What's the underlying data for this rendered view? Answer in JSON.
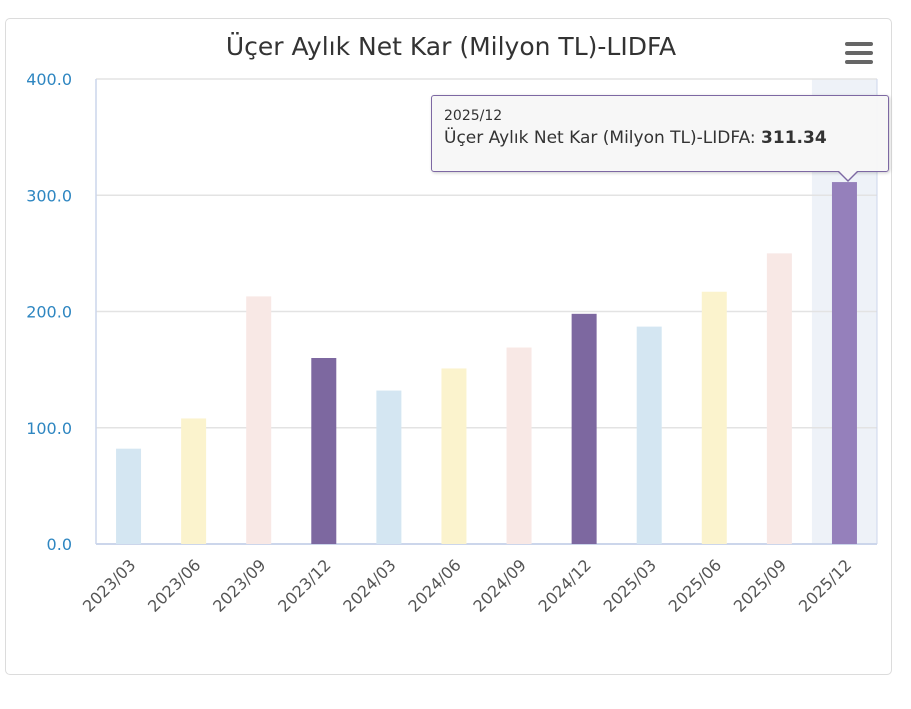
{
  "chart_data": {
    "type": "bar",
    "title": "Üçer Aylık Net Kar (Milyon TL)-LIDFA",
    "categories": [
      "2023/03",
      "2023/06",
      "2023/09",
      "2023/12",
      "2024/03",
      "2024/06",
      "2024/09",
      "2024/12",
      "2025/03",
      "2025/06",
      "2025/09",
      "2025/12"
    ],
    "series": [
      {
        "name": "Üçer Aylık Net Kar (Milyon TL)-LIDFA",
        "values": [
          82,
          108,
          213,
          160,
          132,
          151,
          169,
          198,
          187,
          217,
          250,
          311.34
        ]
      }
    ],
    "colors": [
      "#d4e6f2",
      "#fbf3cd",
      "#f8e8e5",
      "#7d68a0",
      "#d4e6f2",
      "#fbf3cd",
      "#f8e8e5",
      "#7d68a0",
      "#d4e6f2",
      "#fbf3cd",
      "#f8e8e5",
      "#9580bb"
    ],
    "yticks": [
      "0.0",
      "100.0",
      "200.0",
      "300.0",
      "400.0"
    ],
    "ylim": [
      0,
      400
    ],
    "xlabel": "",
    "ylabel": "",
    "grid": true,
    "legend": "none",
    "highlighted_index": 11
  },
  "tooltip": {
    "category": "2025/12",
    "series_label": "Üçer Aylık Net Kar (Milyon TL)-LIDFA: ",
    "value": "311.34"
  },
  "menu_icon": "hamburger-icon"
}
